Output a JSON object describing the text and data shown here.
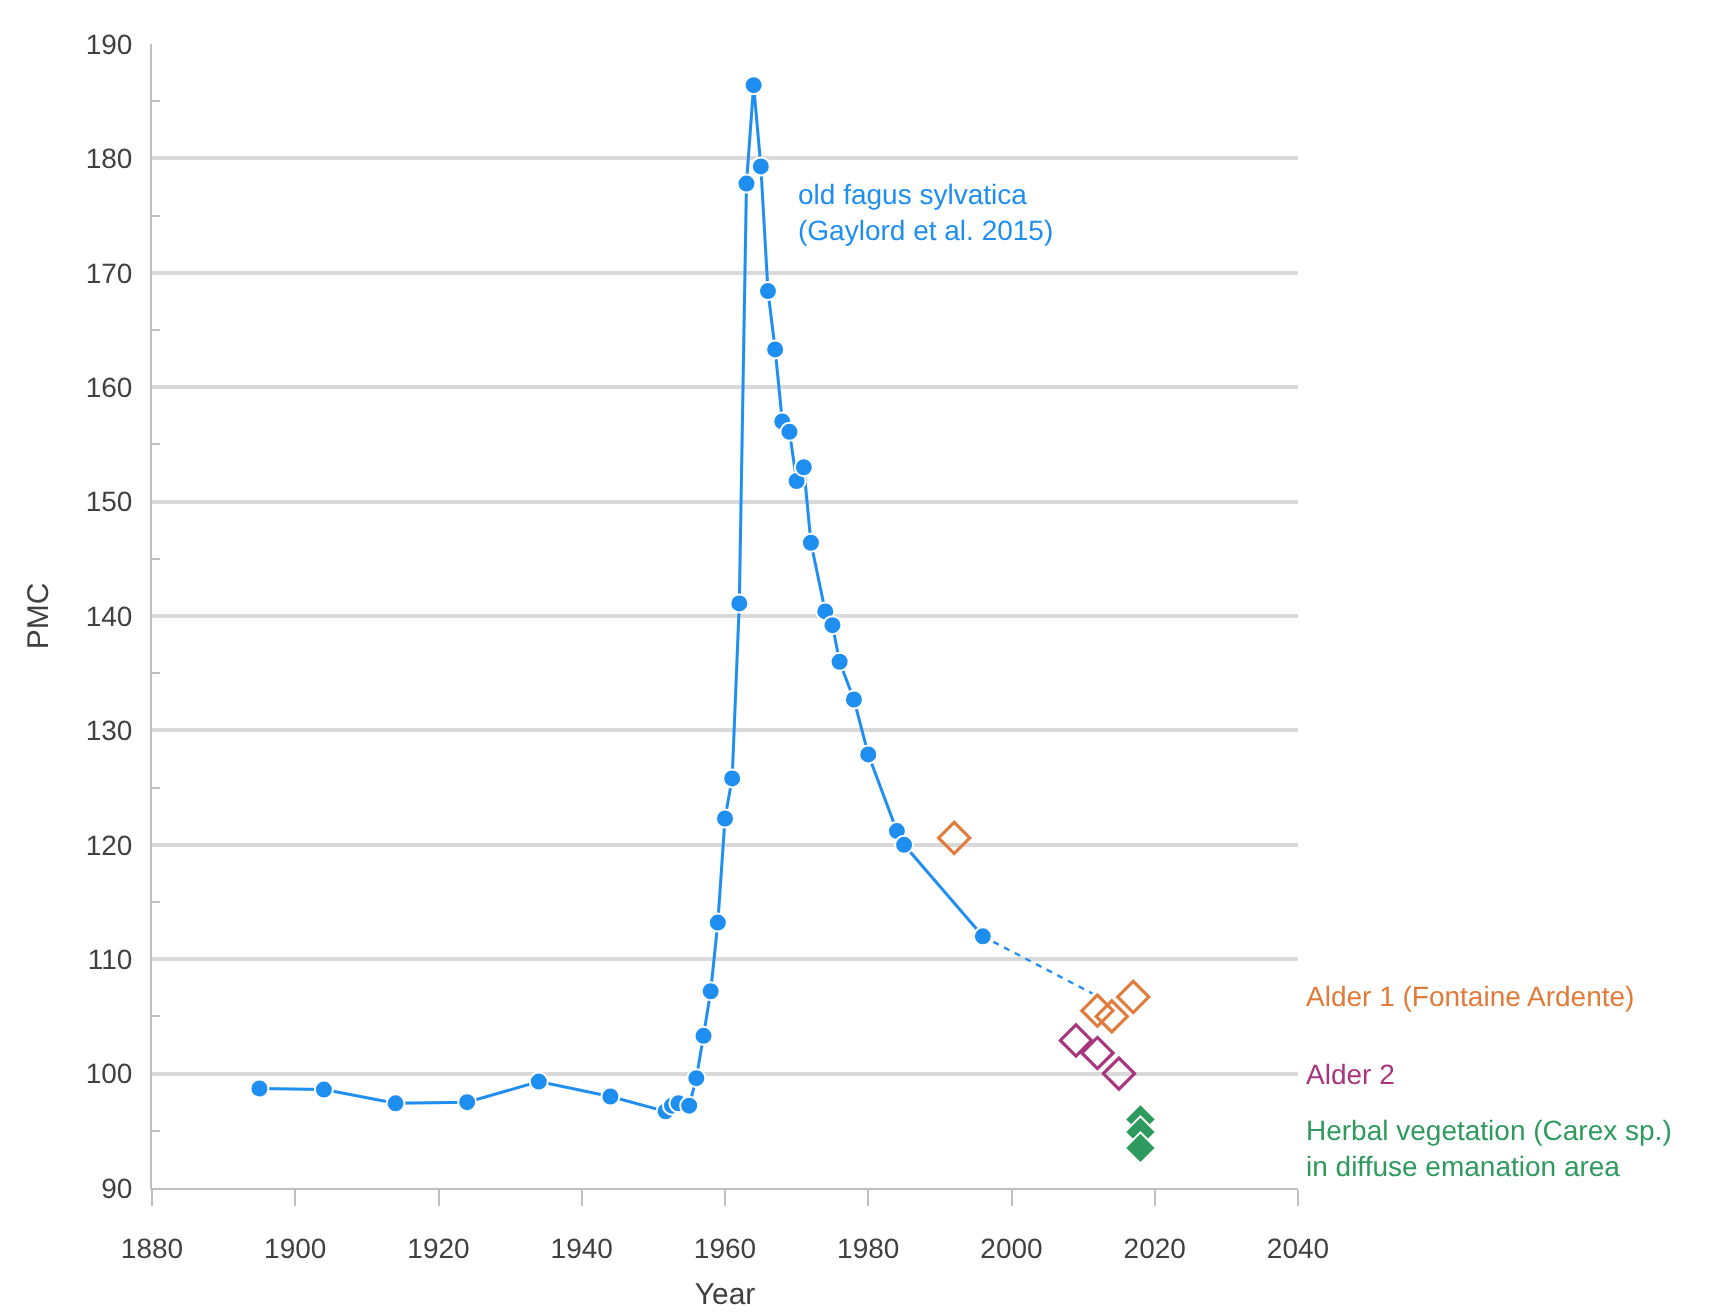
{
  "chart_data": {
    "type": "line",
    "xlabel": "Year",
    "ylabel": "PMC",
    "xlim": [
      1880,
      2040
    ],
    "xticks": [
      1880,
      1900,
      1920,
      1940,
      1960,
      1980,
      2000,
      2020,
      2040
    ],
    "ylim": [
      90,
      190
    ],
    "yticks": [
      90,
      {
        "value": 95,
        "label": null
      },
      100,
      {
        "value": 105,
        "label": null
      },
      110,
      {
        "value": 115,
        "label": null
      },
      120,
      {
        "value": 125,
        "label": null
      },
      130,
      {
        "value": 135,
        "label": null
      },
      140,
      {
        "value": 145,
        "label": null
      },
      150,
      {
        "value": 155,
        "label": null
      },
      160,
      {
        "value": 165,
        "label": null
      },
      170,
      {
        "value": 175,
        "label": null
      },
      180,
      {
        "value": 185,
        "label": null
      },
      190
    ],
    "grid": "y",
    "legend": false,
    "series": [
      {
        "name": "old fagus sylvatica\n(Gaylord et al. 2015)",
        "marker": "circle",
        "line_style": "solid",
        "color": "#1f8ef1",
        "x": [
          1895,
          1904,
          1914,
          1924,
          1934,
          1944,
          1951.7,
          1952.6,
          1953.5,
          1955,
          1956,
          1957,
          1958,
          1959,
          1960,
          1961,
          1962,
          1963,
          1964,
          1965,
          1966,
          1967,
          1968,
          1969,
          1970,
          1971,
          1972,
          1974,
          1975,
          1976,
          1978,
          1980,
          1984,
          1985,
          1996
        ],
        "values": [
          98.7,
          98.6,
          97.4,
          97.5,
          99.3,
          98.0,
          96.7,
          97.2,
          97.4,
          97.2,
          99.6,
          103.3,
          107.2,
          113.2,
          122.3,
          125.8,
          141.1,
          177.8,
          186.4,
          179.3,
          168.4,
          163.3,
          157.0,
          156.1,
          151.8,
          153.0,
          146.4,
          140.4,
          139.2,
          136.0,
          132.7,
          127.9,
          121.2,
          120.0,
          112.0
        ]
      },
      {
        "marker": "none",
        "line_style": "dotted",
        "color": "#1f8ef1",
        "x": [
          1996,
          2011.3
        ],
        "values": [
          112.0,
          107.0
        ]
      },
      {
        "name": "Alder 1 (Fontaine Ardente)",
        "type": "scatter",
        "marker": "diamond-open",
        "color": "#e07b39",
        "x": [
          1992,
          2012,
          2014,
          2017
        ],
        "values": [
          120.6,
          105.5,
          105.0,
          106.7
        ]
      },
      {
        "name": "Alder 2",
        "type": "scatter",
        "marker": "diamond-open",
        "color": "#a8367f",
        "x": [
          2009,
          2012,
          2015
        ],
        "values": [
          102.9,
          101.8,
          100.0
        ]
      },
      {
        "name": "Herbal vegetation (Carex sp.)\nin diffuse emanation area",
        "type": "scatter",
        "marker": "diamond",
        "color": "#2e9a5e",
        "x": [
          2018,
          2018,
          2018
        ],
        "values": [
          96.0,
          94.9,
          93.5
        ]
      }
    ]
  }
}
